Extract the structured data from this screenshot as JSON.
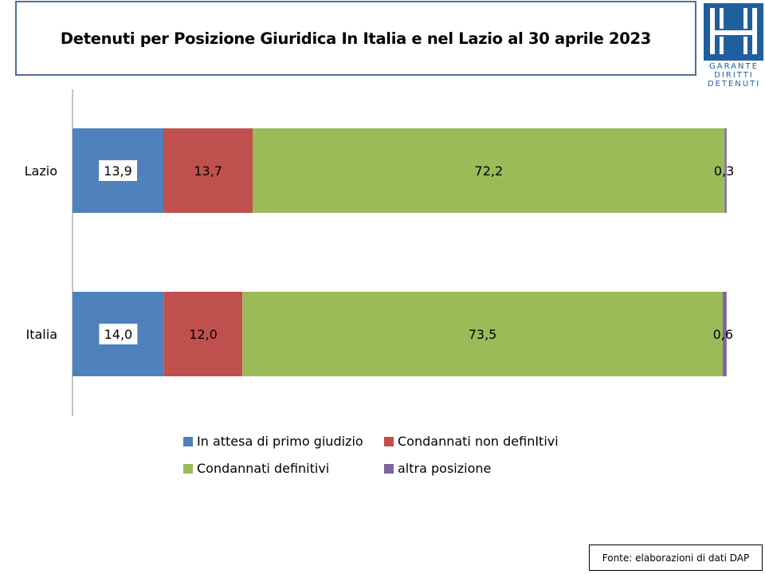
{
  "title": "Detenuti per Posizione Giuridica  In Italia e nel Lazio al 30 aprile 2023",
  "source": "Fonte: elaborazioni di dati DAP",
  "logo": {
    "icon": "garante-logo-icon",
    "lines": [
      "GARANTE",
      "DIRITTI",
      "DETENUTI"
    ],
    "color": "#1f5f9e"
  },
  "chart_data": {
    "type": "bar",
    "orientation": "horizontal",
    "stacked": true,
    "categories": [
      "Lazio",
      "Italia"
    ],
    "xlim": [
      0,
      100
    ],
    "grid": false,
    "legend_position": "bottom",
    "series": [
      {
        "name": "In attesa di primo giudizio",
        "color": "#4f81bd",
        "values": [
          13.9,
          14.0
        ],
        "labels": [
          "13,9",
          "14,0"
        ]
      },
      {
        "name": "Condannati non definItivi",
        "color": "#c0504d",
        "values": [
          13.7,
          12.0
        ],
        "labels": [
          "13,7",
          "12,0"
        ]
      },
      {
        "name": "Condannati definitivi",
        "color": "#9bbb59",
        "values": [
          72.2,
          73.5
        ],
        "labels": [
          "72,2",
          "73,5"
        ]
      },
      {
        "name": "altra posizione",
        "color": "#8064a2",
        "values": [
          0.3,
          0.6
        ],
        "labels": [
          "0,3",
          "0,6"
        ]
      }
    ]
  }
}
